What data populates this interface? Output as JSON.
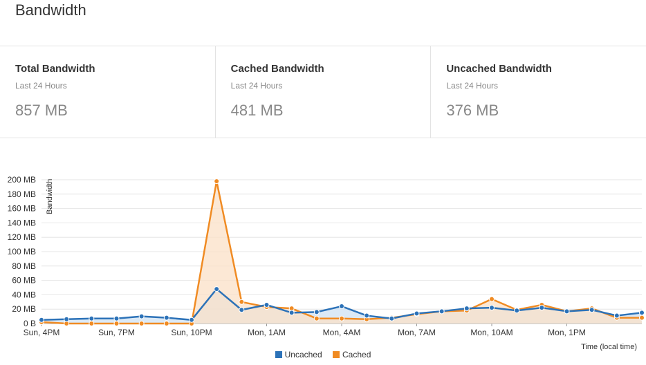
{
  "page": {
    "title": "Bandwidth"
  },
  "stats": [
    {
      "label": "Total Bandwidth",
      "period": "Last 24 Hours",
      "value": "857 MB"
    },
    {
      "label": "Cached Bandwidth",
      "period": "Last 24 Hours",
      "value": "481 MB"
    },
    {
      "label": "Uncached Bandwidth",
      "period": "Last 24 Hours",
      "value": "376 MB"
    }
  ],
  "chart_data": {
    "type": "area",
    "ylabel": "Bandwidth",
    "xlabel": "Time (local time)",
    "ylim": [
      0,
      200
    ],
    "y_ticks": [
      "0 B",
      "20 MB",
      "40 MB",
      "60 MB",
      "80 MB",
      "100 MB",
      "120 MB",
      "140 MB",
      "160 MB",
      "180 MB",
      "200 MB"
    ],
    "x_ticks": [
      "Sun, 4PM",
      "Sun, 7PM",
      "Sun, 10PM",
      "Mon, 1AM",
      "Mon, 4AM",
      "Mon, 7AM",
      "Mon, 10AM",
      "Mon, 1PM"
    ],
    "grid": true,
    "legend_position": "bottom-center",
    "x_hours": [
      0,
      1,
      2,
      3,
      4,
      5,
      6,
      7,
      8,
      9,
      10,
      11,
      12,
      13,
      14,
      15,
      16,
      17,
      18,
      19,
      20,
      21,
      22,
      23,
      24
    ],
    "series": [
      {
        "name": "Uncached",
        "color": "#2c72b8",
        "fill": "#cfe1f3",
        "values": [
          5,
          6,
          7,
          7,
          10,
          8,
          5,
          48,
          19,
          26,
          15,
          16,
          24,
          11,
          7,
          14,
          17,
          21,
          22,
          18,
          22,
          17,
          19,
          11,
          15
        ]
      },
      {
        "name": "Cached",
        "color": "#f08b23",
        "fill": "#fbe0c7",
        "values": [
          2,
          0,
          0,
          0,
          0,
          0,
          0,
          198,
          30,
          23,
          21,
          7,
          7,
          6,
          8,
          13,
          17,
          18,
          34,
          19,
          26,
          17,
          21,
          8,
          8
        ]
      }
    ]
  }
}
